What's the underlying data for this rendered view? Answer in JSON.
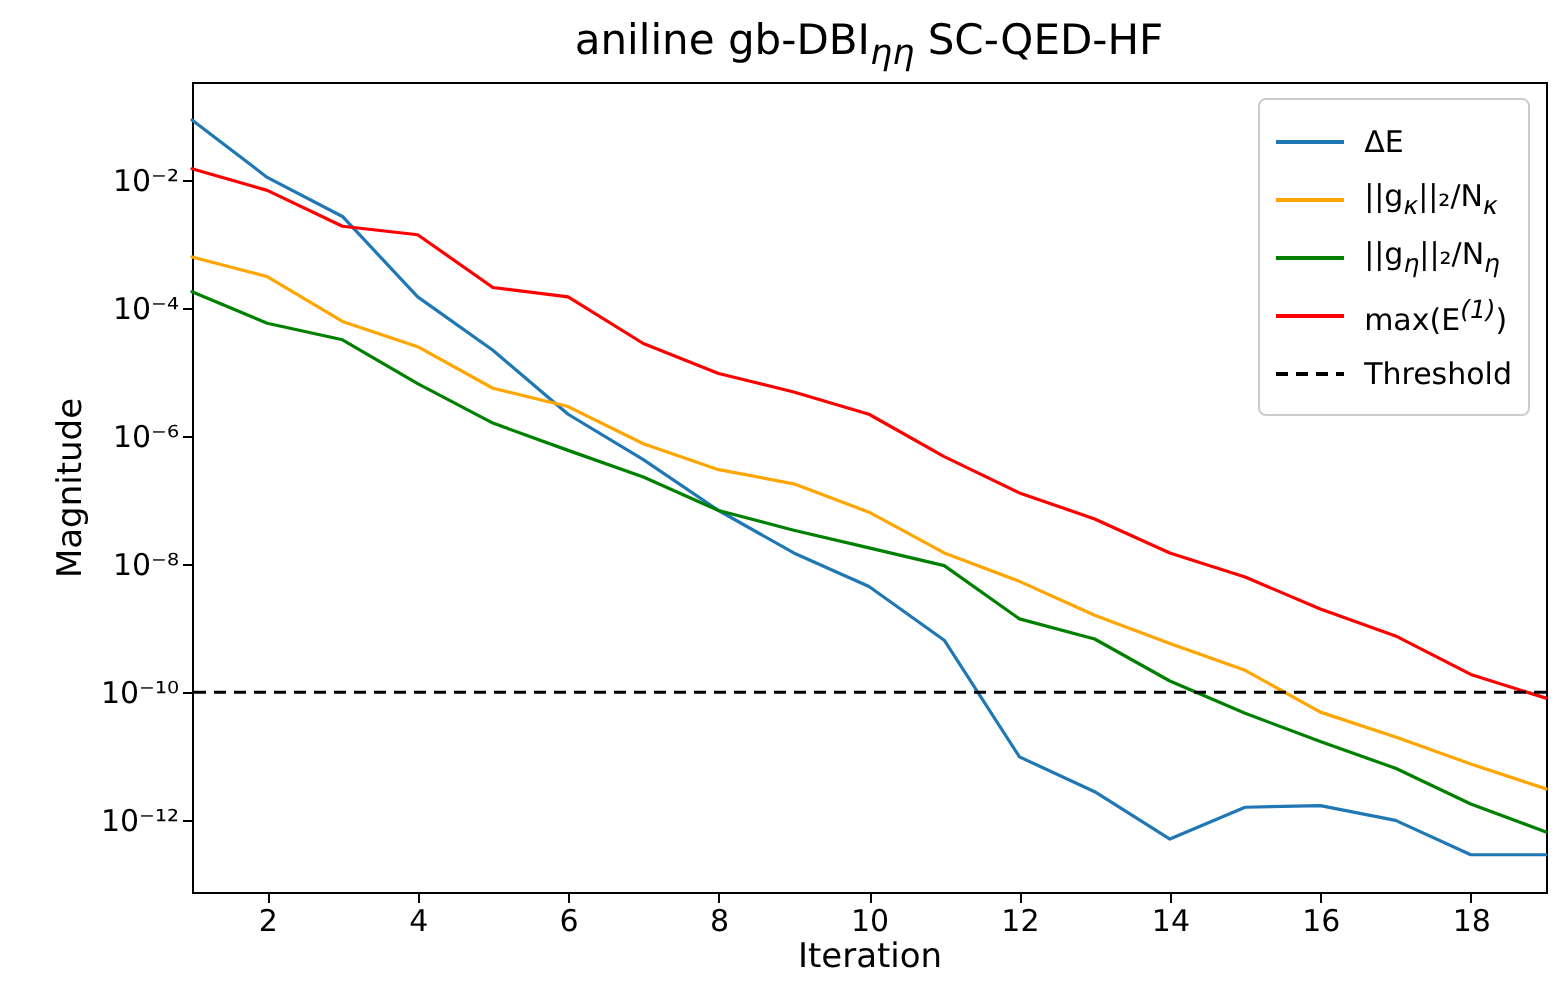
{
  "chart_data": {
    "type": "line",
    "title": "aniline gb-DBI$_{ηη}$ SC-QED-HF",
    "xlabel": "Iteration",
    "ylabel": "Magnitude",
    "x": [
      1,
      2,
      3,
      4,
      5,
      6,
      7,
      8,
      9,
      10,
      11,
      12,
      13,
      14,
      15,
      16,
      17,
      18,
      19
    ],
    "series": [
      {
        "name": "ΔE",
        "color": "#1f77b4",
        "values": [
          0.087,
          0.011,
          0.0027,
          0.00015,
          2.2e-05,
          2.2e-06,
          4.3e-07,
          6.9e-08,
          1.5e-08,
          4.5e-09,
          6.5e-10,
          9.8e-12,
          2.8e-12,
          5.1e-13,
          1.6e-12,
          1.7e-12,
          1e-12,
          2.9e-13,
          2.9e-13
        ]
      },
      {
        "name": "||g$_{κ}$||₂/N$_{κ}$",
        "color": "#ffa500",
        "values": [
          0.00063,
          0.00031,
          6.2e-05,
          2.5e-05,
          5.6e-06,
          2.9e-06,
          7.6e-07,
          3e-07,
          1.8e-07,
          6.5e-08,
          1.5e-08,
          5.4e-09,
          1.6e-09,
          5.8e-10,
          2.2e-10,
          4.9e-11,
          2e-11,
          7.6e-12,
          3.1e-12
        ]
      },
      {
        "name": "||g$_{η}$||₂/N$_{η}$",
        "color": "#008000",
        "values": [
          0.00018,
          5.8e-05,
          3.2e-05,
          6.6e-06,
          1.6e-06,
          6e-07,
          2.3e-07,
          6.9e-08,
          3.4e-08,
          1.8e-08,
          9.5e-09,
          1.4e-09,
          6.8e-10,
          1.5e-10,
          4.7e-11,
          1.7e-11,
          6.5e-12,
          1.8e-12,
          6.6e-13
        ]
      },
      {
        "name": "max(E$^{(1)}$)",
        "color": "#ff0000",
        "values": [
          0.015,
          0.0069,
          0.0019,
          0.0014,
          0.00021,
          0.00015,
          2.8e-05,
          9.5e-06,
          4.9e-06,
          2.2e-06,
          4.8e-07,
          1.3e-07,
          5.1e-08,
          1.5e-08,
          6.3e-09,
          2e-09,
          7.6e-10,
          1.9e-10,
          8.1e-11
        ]
      }
    ],
    "ref_lines": [
      {
        "axis": "y",
        "value": 1e-10,
        "label": "Threshold",
        "color": "#000000",
        "line_style": "dashed"
      }
    ],
    "log": "y",
    "xlim": [
      1,
      19
    ],
    "xticks": [
      2,
      4,
      6,
      8,
      10,
      12,
      14,
      16,
      18
    ],
    "ylim": [
      7.6e-14,
      0.34
    ],
    "yticks": [
      {
        "value": 0.01,
        "label": "10⁻²"
      },
      {
        "value": 0.0001,
        "label": "10⁻⁴"
      },
      {
        "value": 1e-06,
        "label": "10⁻⁶"
      },
      {
        "value": 1e-08,
        "label": "10⁻⁸"
      },
      {
        "value": 1e-10,
        "label": "10⁻¹⁰"
      },
      {
        "value": 1e-12,
        "label": "10⁻¹²"
      }
    ],
    "grid": false,
    "legend": "top right",
    "marker": "none",
    "line_style": "solid"
  }
}
